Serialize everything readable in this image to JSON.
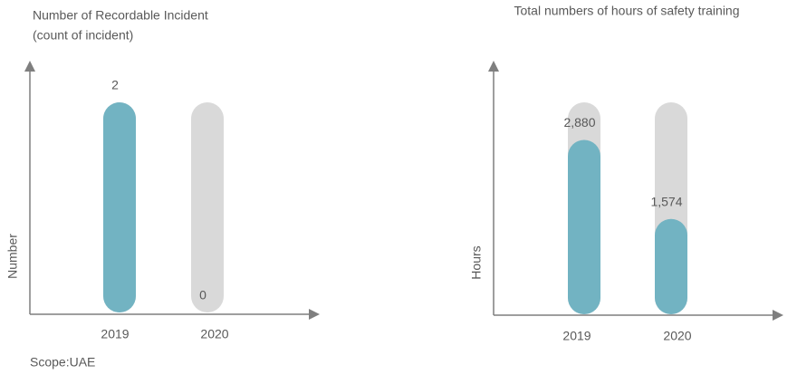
{
  "chart_data": [
    {
      "type": "bar",
      "title": "Number of Recordable Incident",
      "subtitle": "(count of incident)",
      "y_label": "Number",
      "categories": [
        "2019",
        "2020"
      ],
      "values": [
        2,
        0
      ],
      "color": "#72b3c2",
      "track_color": "#d9d9d9",
      "ylim": [
        0,
        2
      ]
    },
    {
      "type": "bar",
      "title": "Total numbers of hours of safety training",
      "y_label": "Hours",
      "categories": [
        "2019",
        "2020"
      ],
      "values": [
        2880,
        1574
      ],
      "value_labels": [
        "2,880",
        "1,574"
      ],
      "color": "#72b3c2",
      "track_color": "#d9d9d9",
      "ylim": [
        0,
        3500
      ]
    }
  ],
  "scope": "Scope:UAE"
}
